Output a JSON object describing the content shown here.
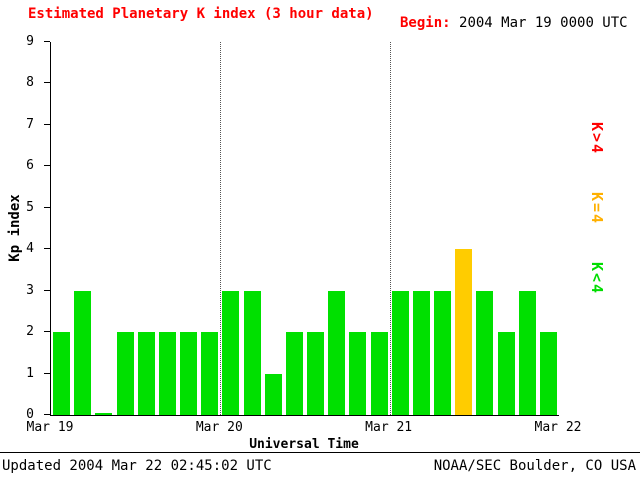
{
  "header": {
    "title": "Estimated Planetary K index (3 hour data)",
    "begin_label": "Begin:",
    "begin_value": "2004 Mar 19 0000 UTC"
  },
  "chart_data": {
    "type": "bar",
    "title": "Estimated Planetary K index (3 hour data)",
    "xlabel": "Universal Time",
    "ylabel": "Kp index",
    "ylim": [
      0,
      9
    ],
    "y_ticks": [
      0,
      1,
      2,
      3,
      4,
      5,
      6,
      7,
      8,
      9
    ],
    "x_ticks": [
      "Mar 19",
      "Mar 20",
      "Mar 21",
      "Mar 22"
    ],
    "bars_per_day": 8,
    "bar_interval_hours": 3,
    "values": [
      2,
      3,
      0,
      2,
      2,
      2,
      2,
      2,
      3,
      3,
      1,
      2,
      2,
      3,
      2,
      2,
      3,
      3,
      3,
      4,
      3,
      2,
      3,
      2
    ],
    "colors": {
      "below4": "#00e000",
      "equal4": "#ffcc00",
      "above4": "#ff0000"
    },
    "grid": "dotted vertical lines at day boundaries",
    "legend_position": "right"
  },
  "legend": {
    "items": [
      {
        "label": "K>4",
        "color": "#ff0000"
      },
      {
        "label": "K=4",
        "color": "#ffb000"
      },
      {
        "label": "K<4",
        "color": "#00dd00"
      }
    ]
  },
  "footer": {
    "updated": "Updated 2004 Mar 22 02:45:02 UTC",
    "credit": "NOAA/SEC Boulder, CO USA"
  }
}
